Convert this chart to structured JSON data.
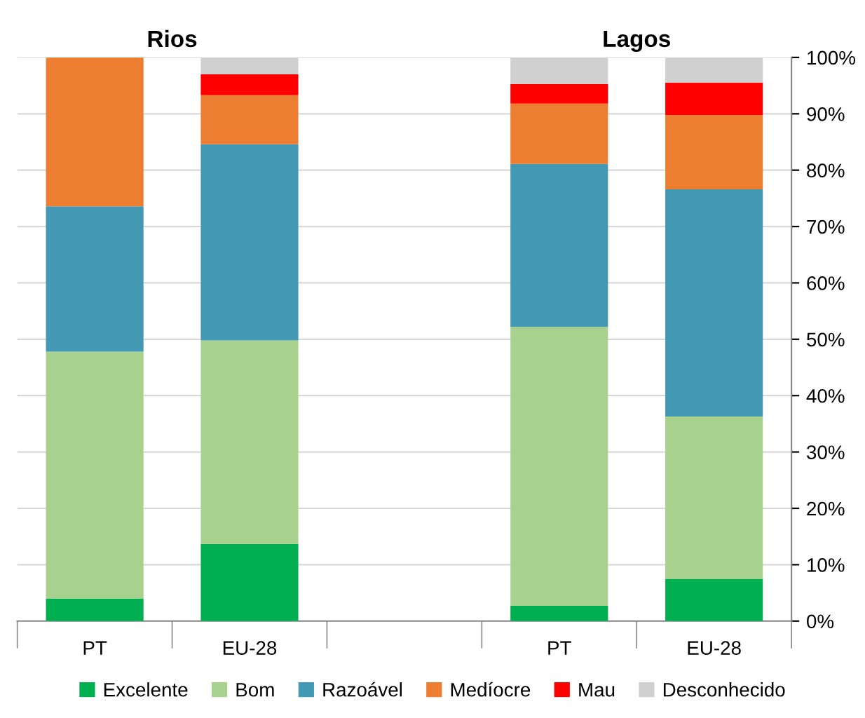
{
  "chart_data": {
    "type": "bar",
    "stacked": true,
    "categories": [
      "PT",
      "EU-28",
      null,
      "PT",
      "EU-28"
    ],
    "series": [
      {
        "name": "Excelente",
        "color": "#00b050",
        "values": [
          4.0,
          13.7,
          null,
          2.7,
          7.5
        ]
      },
      {
        "name": "Bom",
        "color": "#a9d18e",
        "values": [
          43.8,
          36.1,
          null,
          49.5,
          28.8
        ]
      },
      {
        "name": "Razoável",
        "color": "#4398b4",
        "values": [
          25.8,
          34.8,
          null,
          28.9,
          40.3
        ]
      },
      {
        "name": "Medíocre",
        "color": "#ed7d31",
        "values": [
          26.4,
          8.7,
          null,
          10.7,
          13.2
        ]
      },
      {
        "name": "Mau",
        "color": "#ff0000",
        "values": [
          0,
          3.7,
          null,
          3.5,
          5.7
        ]
      },
      {
        "name": "Desconhecido",
        "color": "#d0d0d0",
        "values": [
          0,
          3.0,
          null,
          4.7,
          4.5
        ]
      }
    ],
    "annotations": [
      "Rios",
      "Lagos"
    ],
    "ylim": [
      0,
      100
    ],
    "yticks": [
      {
        "value": 0,
        "label": "0%"
      },
      {
        "value": 10,
        "label": "10%"
      },
      {
        "value": 20,
        "label": "20%"
      },
      {
        "value": 30,
        "label": "30%"
      },
      {
        "value": 40,
        "label": "40%"
      },
      {
        "value": 50,
        "label": "50%"
      },
      {
        "value": 60,
        "label": "60%"
      },
      {
        "value": 70,
        "label": "70%"
      },
      {
        "value": 80,
        "label": "80%"
      },
      {
        "value": 90,
        "label": "90%"
      },
      {
        "value": 100,
        "label": "100%"
      }
    ],
    "grid": "y",
    "legend": "bottom"
  }
}
